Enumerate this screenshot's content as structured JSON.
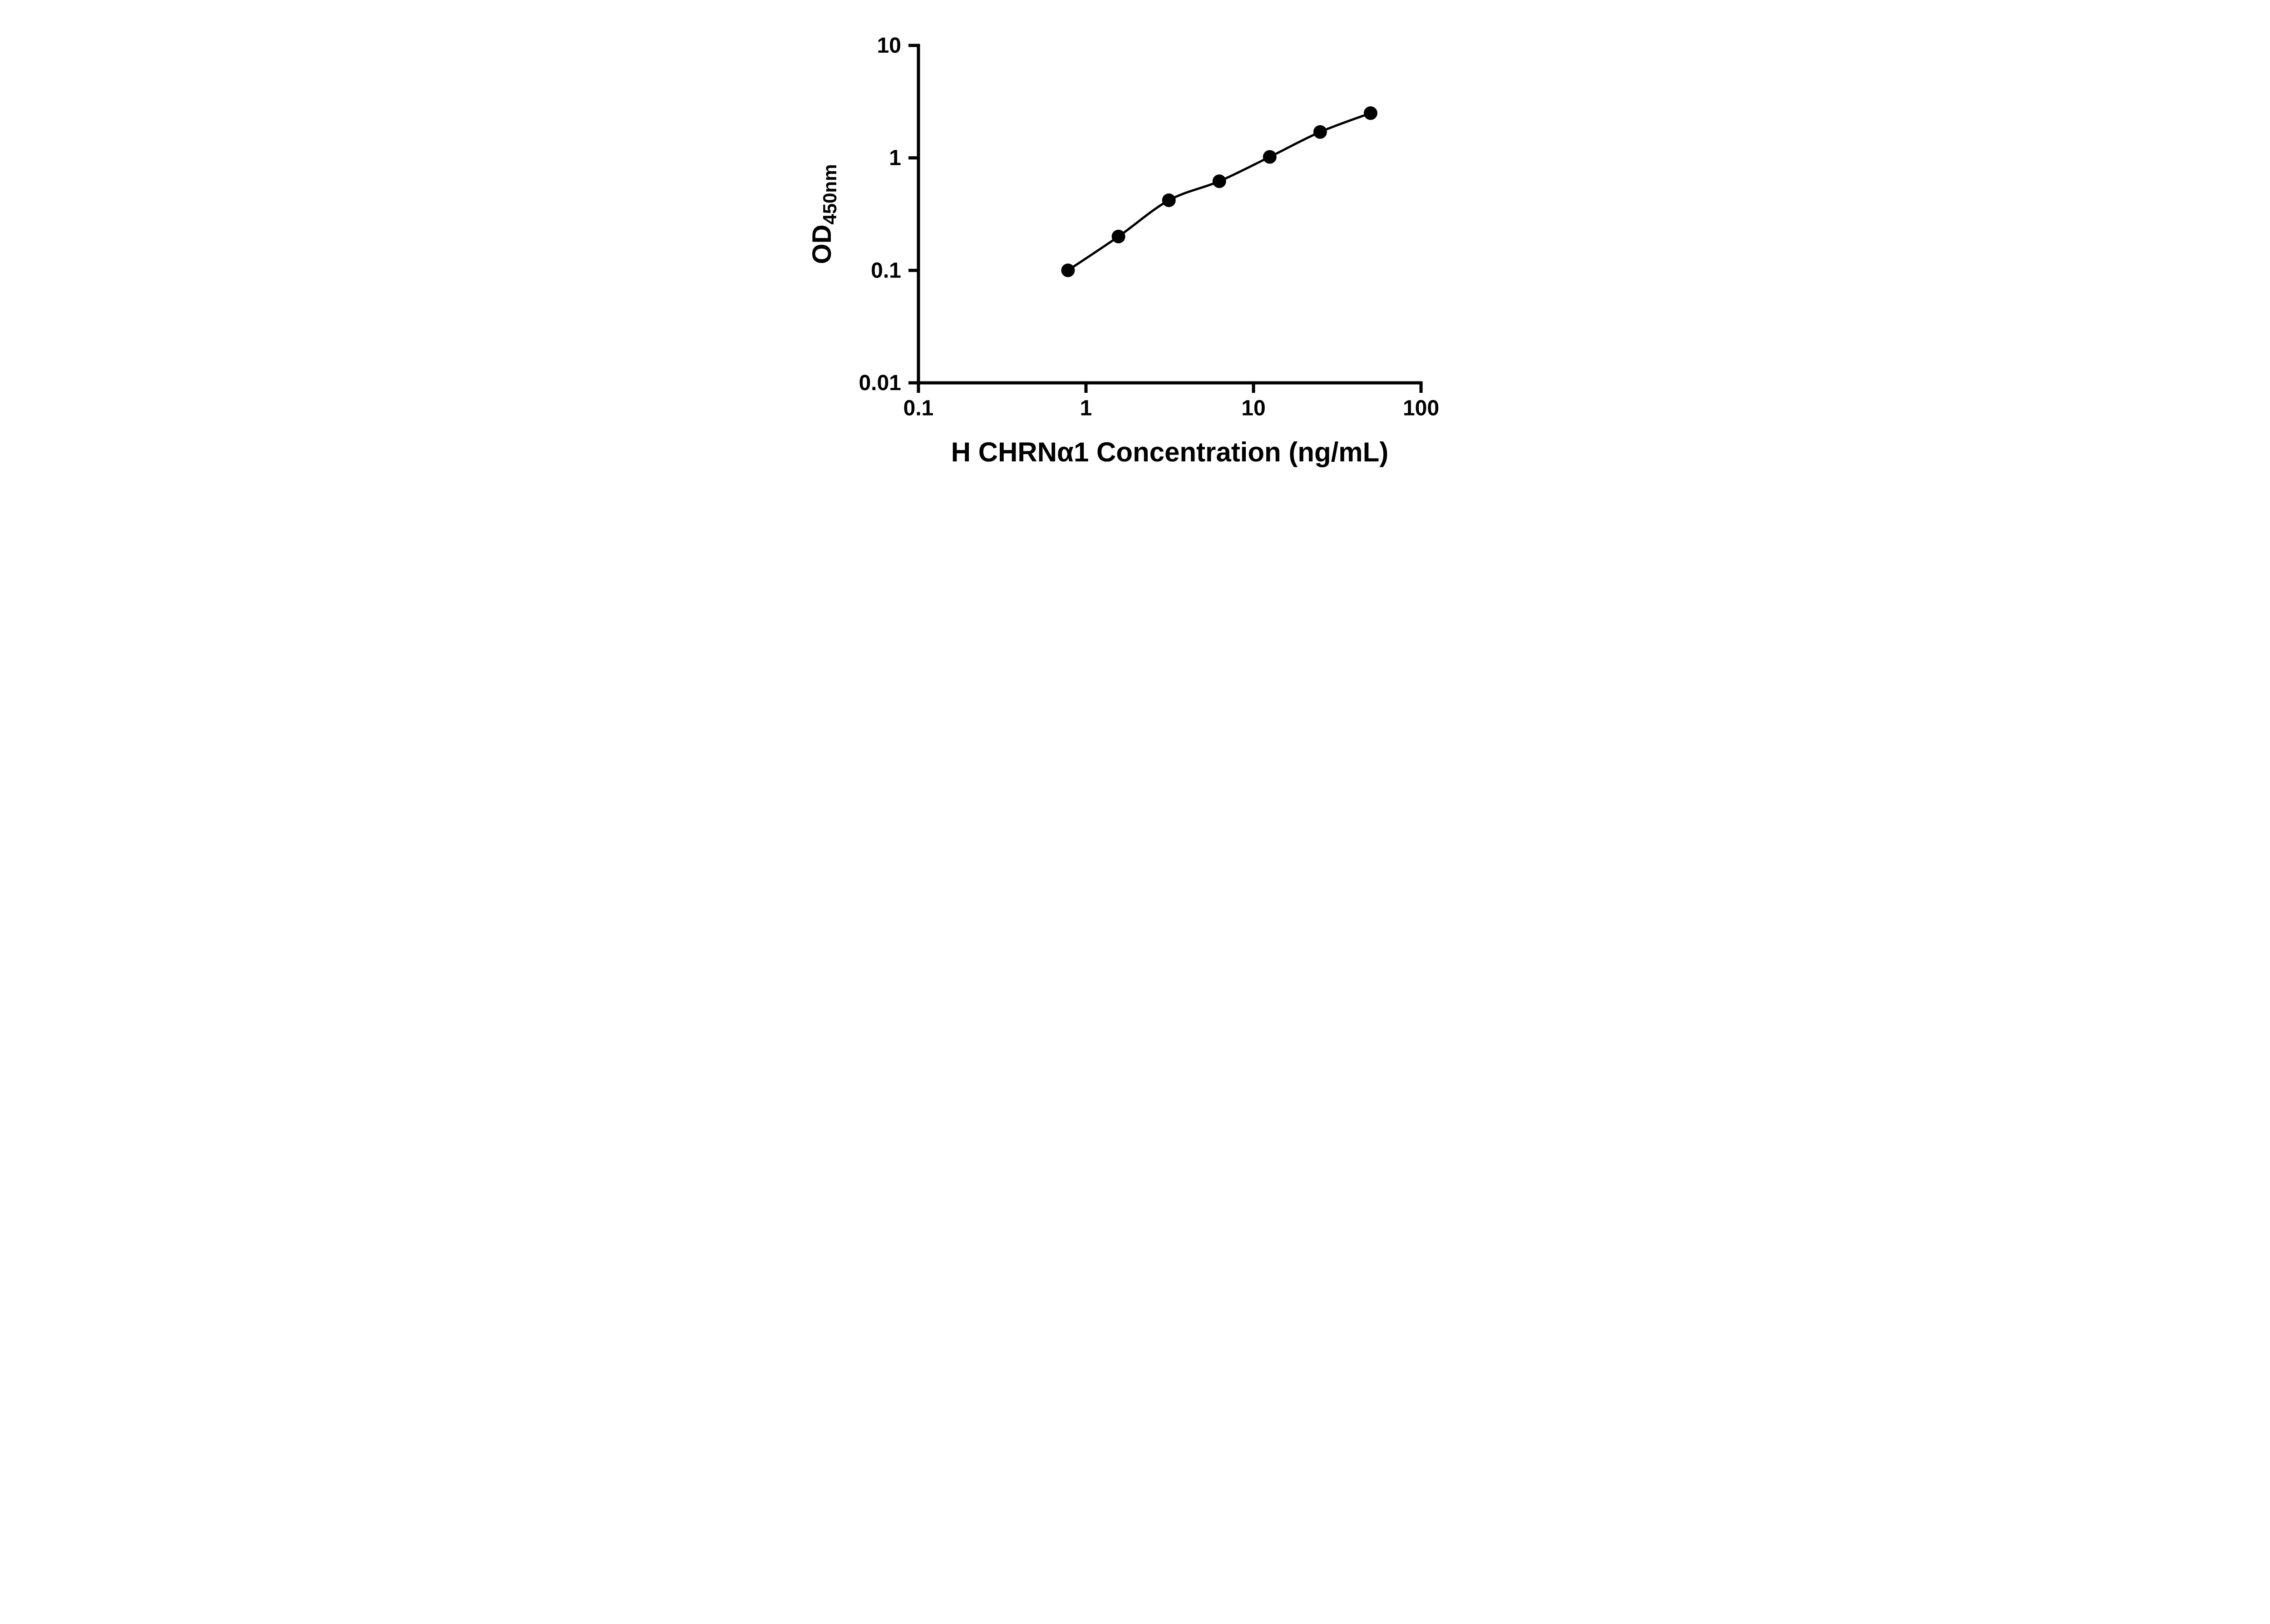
{
  "chart_data": {
    "type": "scatter",
    "title": "",
    "xlabel": "H CHRNα1 Concentration (ng/mL)",
    "ylabel_main": "OD",
    "ylabel_sub": "450nm",
    "x_scale": "log",
    "y_scale": "log",
    "xlim": [
      0.1,
      100
    ],
    "ylim": [
      0.01,
      10
    ],
    "x_ticks": [
      "0.1",
      "1",
      "10",
      "100"
    ],
    "y_ticks": [
      "0.01",
      "0.1",
      "1",
      "10"
    ],
    "grid": false,
    "legend": null,
    "marker_color": "#000000",
    "line_color": "#000000",
    "background": "#ffffff",
    "points": [
      {
        "x": 0.781,
        "y": 0.1
      },
      {
        "x": 1.563,
        "y": 0.2
      },
      {
        "x": 3.125,
        "y": 0.42
      },
      {
        "x": 6.25,
        "y": 0.62
      },
      {
        "x": 12.5,
        "y": 1.02
      },
      {
        "x": 25,
        "y": 1.7
      },
      {
        "x": 50,
        "y": 2.5
      }
    ]
  }
}
